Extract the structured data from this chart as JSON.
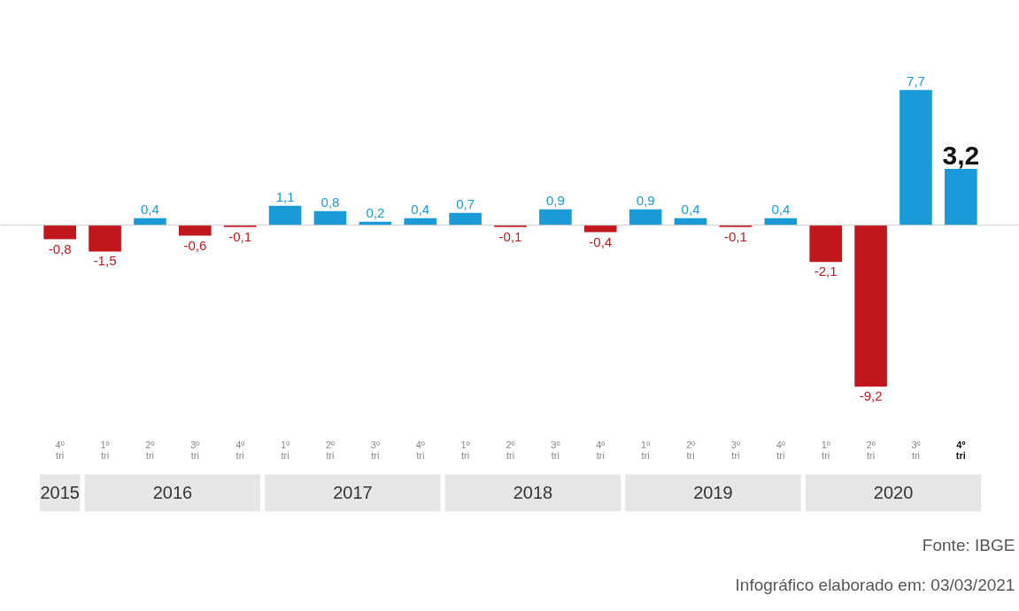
{
  "chart_data": {
    "type": "bar",
    "categories": [
      "4º tri",
      "1º tri",
      "2º tri",
      "3º tri",
      "4º tri",
      "1º tri",
      "2º tri",
      "3º tri",
      "4º tri",
      "1º tri",
      "2º tri",
      "3º tri",
      "4º tri",
      "1º tri",
      "2º tri",
      "3º tri",
      "4º tri",
      "1º tri",
      "2º tri",
      "3º tri",
      "4º tri"
    ],
    "values": [
      -0.8,
      -1.5,
      0.4,
      -0.6,
      -0.1,
      1.1,
      0.8,
      0.2,
      0.4,
      0.7,
      -0.1,
      0.9,
      -0.4,
      0.9,
      0.4,
      -0.1,
      0.4,
      -2.1,
      -9.2,
      7.7,
      3.2
    ],
    "colors": [
      "#c0161c",
      "#c0161c",
      "#1a9ad6",
      "#c0161c",
      "#c0161c",
      "#1a9ad6",
      "#1a9ad6",
      "#1a9ad6",
      "#1a9ad6",
      "#1a9ad6",
      "#c0161c",
      "#1a9ad6",
      "#c0161c",
      "#1a9ad6",
      "#1a9ad6",
      "#c0161c",
      "#1a9ad6",
      "#c0161c",
      "#c0161c",
      "#1a9ad6",
      "#1a9ad6"
    ],
    "value_labels": [
      "-0,8",
      "-1,5",
      "0,4",
      "-0,6",
      "-0,1",
      "1,1",
      "0,8",
      "0,2",
      "0,4",
      "0,7",
      "-0,1",
      "0,9",
      "-0,4",
      "0,9",
      "0,4",
      "-0,1",
      "0,4",
      "-2,1",
      "-9,2",
      "7,7",
      "3,2"
    ],
    "annotations": [
      "2015",
      "2016",
      "2017",
      "2018",
      "2019",
      "2020",
      "Fonte: IBGE",
      "Infográfico elaborado em: 03/03/2021"
    ],
    "grid": false
  }
}
